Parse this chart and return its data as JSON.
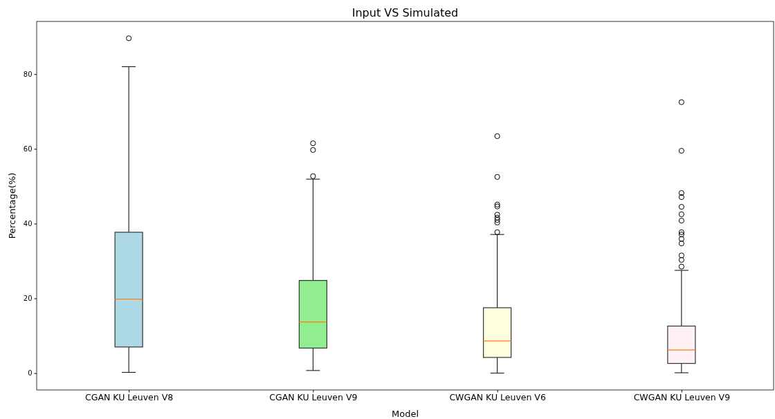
{
  "chart_data": {
    "type": "box",
    "title": "Input VS Simulated",
    "xlabel": "Model",
    "ylabel": "Percentage(%)",
    "categories": [
      "CGAN KU Leuven V8",
      "CGAN KU Leuven V9",
      "CWGAN KU Leuven V6",
      "CWGAN KU Leuven V9"
    ],
    "colors": [
      "#add8e6",
      "#90ee90",
      "#ffffe0",
      "#fff0f5"
    ],
    "boxes": [
      {
        "low": 0.2,
        "q1": 7.0,
        "median": 19.8,
        "q3": 37.7,
        "high": 82.0,
        "outliers": [
          89.6
        ]
      },
      {
        "low": 0.7,
        "q1": 6.7,
        "median": 13.7,
        "q3": 24.8,
        "high": 51.9,
        "outliers": [
          61.5,
          59.7,
          52.7
        ]
      },
      {
        "low": 0.0,
        "q1": 4.2,
        "median": 8.6,
        "q3": 17.5,
        "high": 37.1,
        "outliers": [
          63.4,
          52.5,
          45.1,
          44.6,
          42.4,
          41.6,
          41.0,
          40.3,
          37.7
        ]
      },
      {
        "low": 0.1,
        "q1": 2.6,
        "median": 6.2,
        "q3": 12.6,
        "high": 27.5,
        "outliers": [
          72.5,
          59.5,
          48.2,
          47.1,
          44.5,
          42.5,
          40.8,
          37.7,
          37.1,
          35.9,
          34.7,
          31.5,
          30.3,
          28.5
        ]
      }
    ],
    "ylim": [
      -4.5,
      94.1
    ],
    "yticks": [
      0,
      20,
      40,
      60,
      80
    ],
    "grid": false
  }
}
